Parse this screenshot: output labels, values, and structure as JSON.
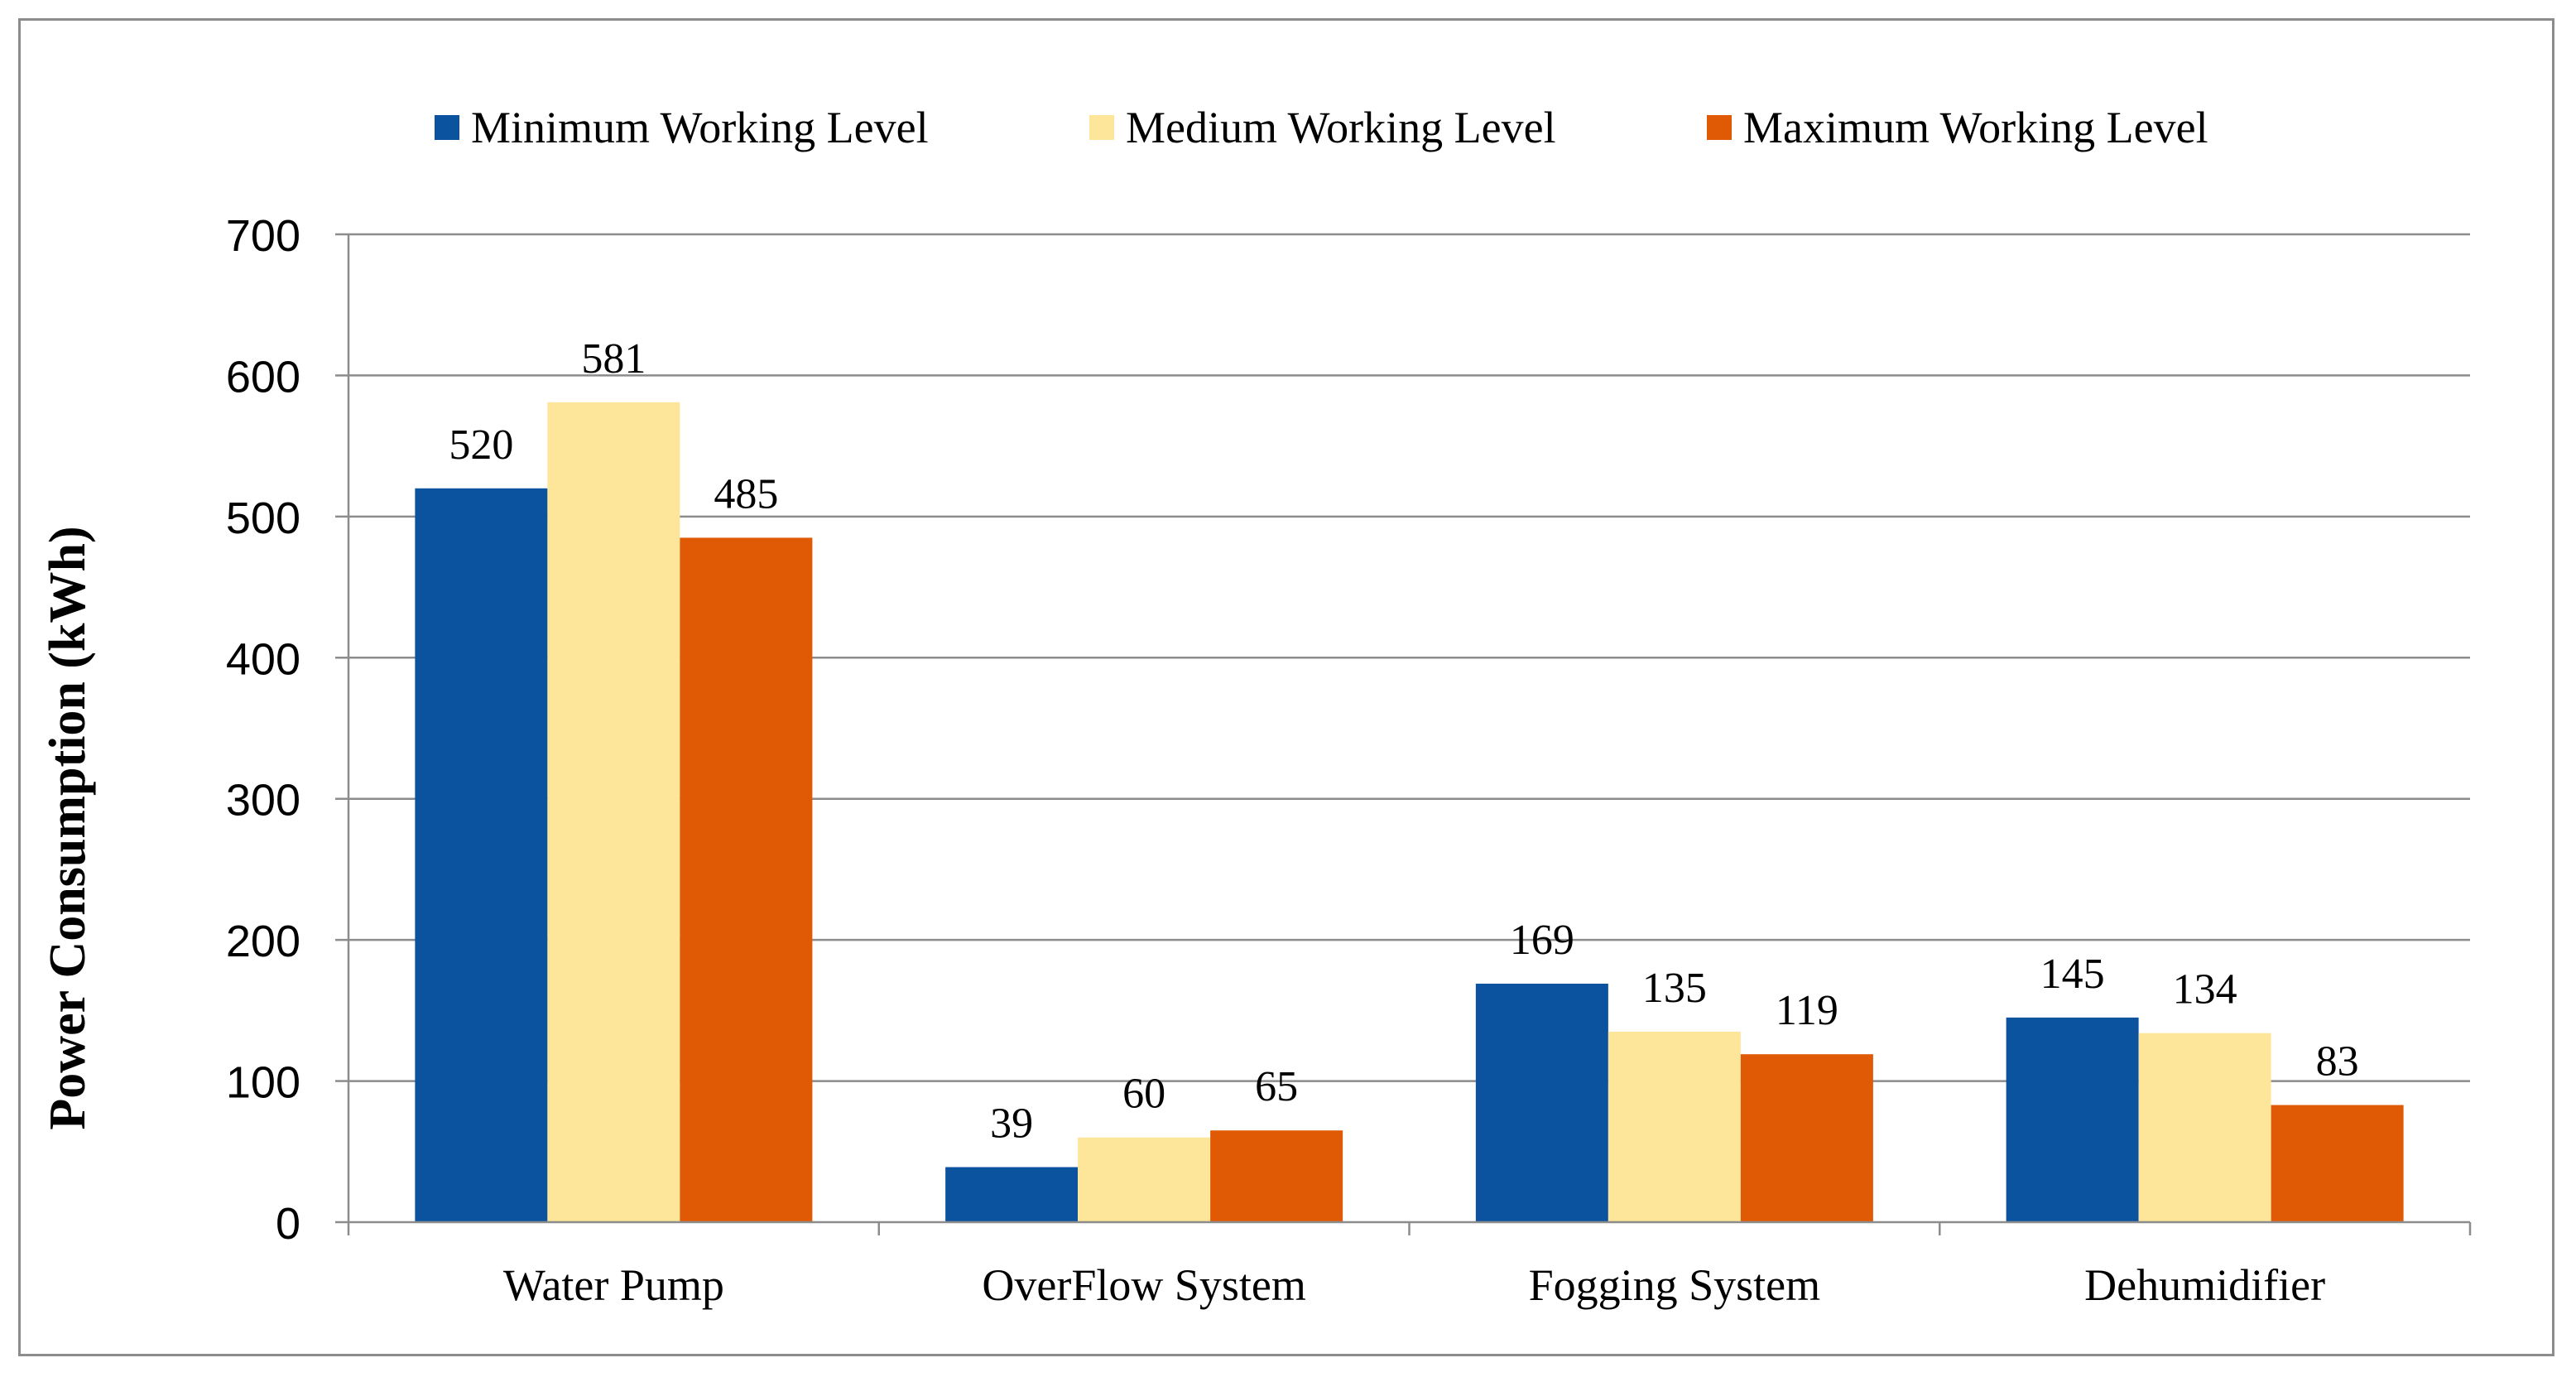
{
  "chart_data": {
    "type": "bar",
    "title": "",
    "xlabel": "",
    "ylabel": "Power Consumption (kWh)",
    "ylim": [
      0,
      700
    ],
    "yticks": [
      "0",
      "100",
      "200",
      "300",
      "400",
      "500",
      "600",
      "700"
    ],
    "grid": true,
    "legend_position": "top",
    "categories": [
      "Water Pump",
      "OverFlow System",
      "Fogging System",
      "Dehumidifier"
    ],
    "series": [
      {
        "name": "Minimum Working Level",
        "color": "#0b539e",
        "values": [
          520,
          39,
          169,
          145
        ]
      },
      {
        "name": "Medium Working Level",
        "color": "#fde69a",
        "values": [
          581,
          60,
          135,
          134
        ]
      },
      {
        "name": "Maximum Working Level",
        "color": "#e05a05",
        "values": [
          485,
          65,
          119,
          83
        ]
      }
    ]
  }
}
